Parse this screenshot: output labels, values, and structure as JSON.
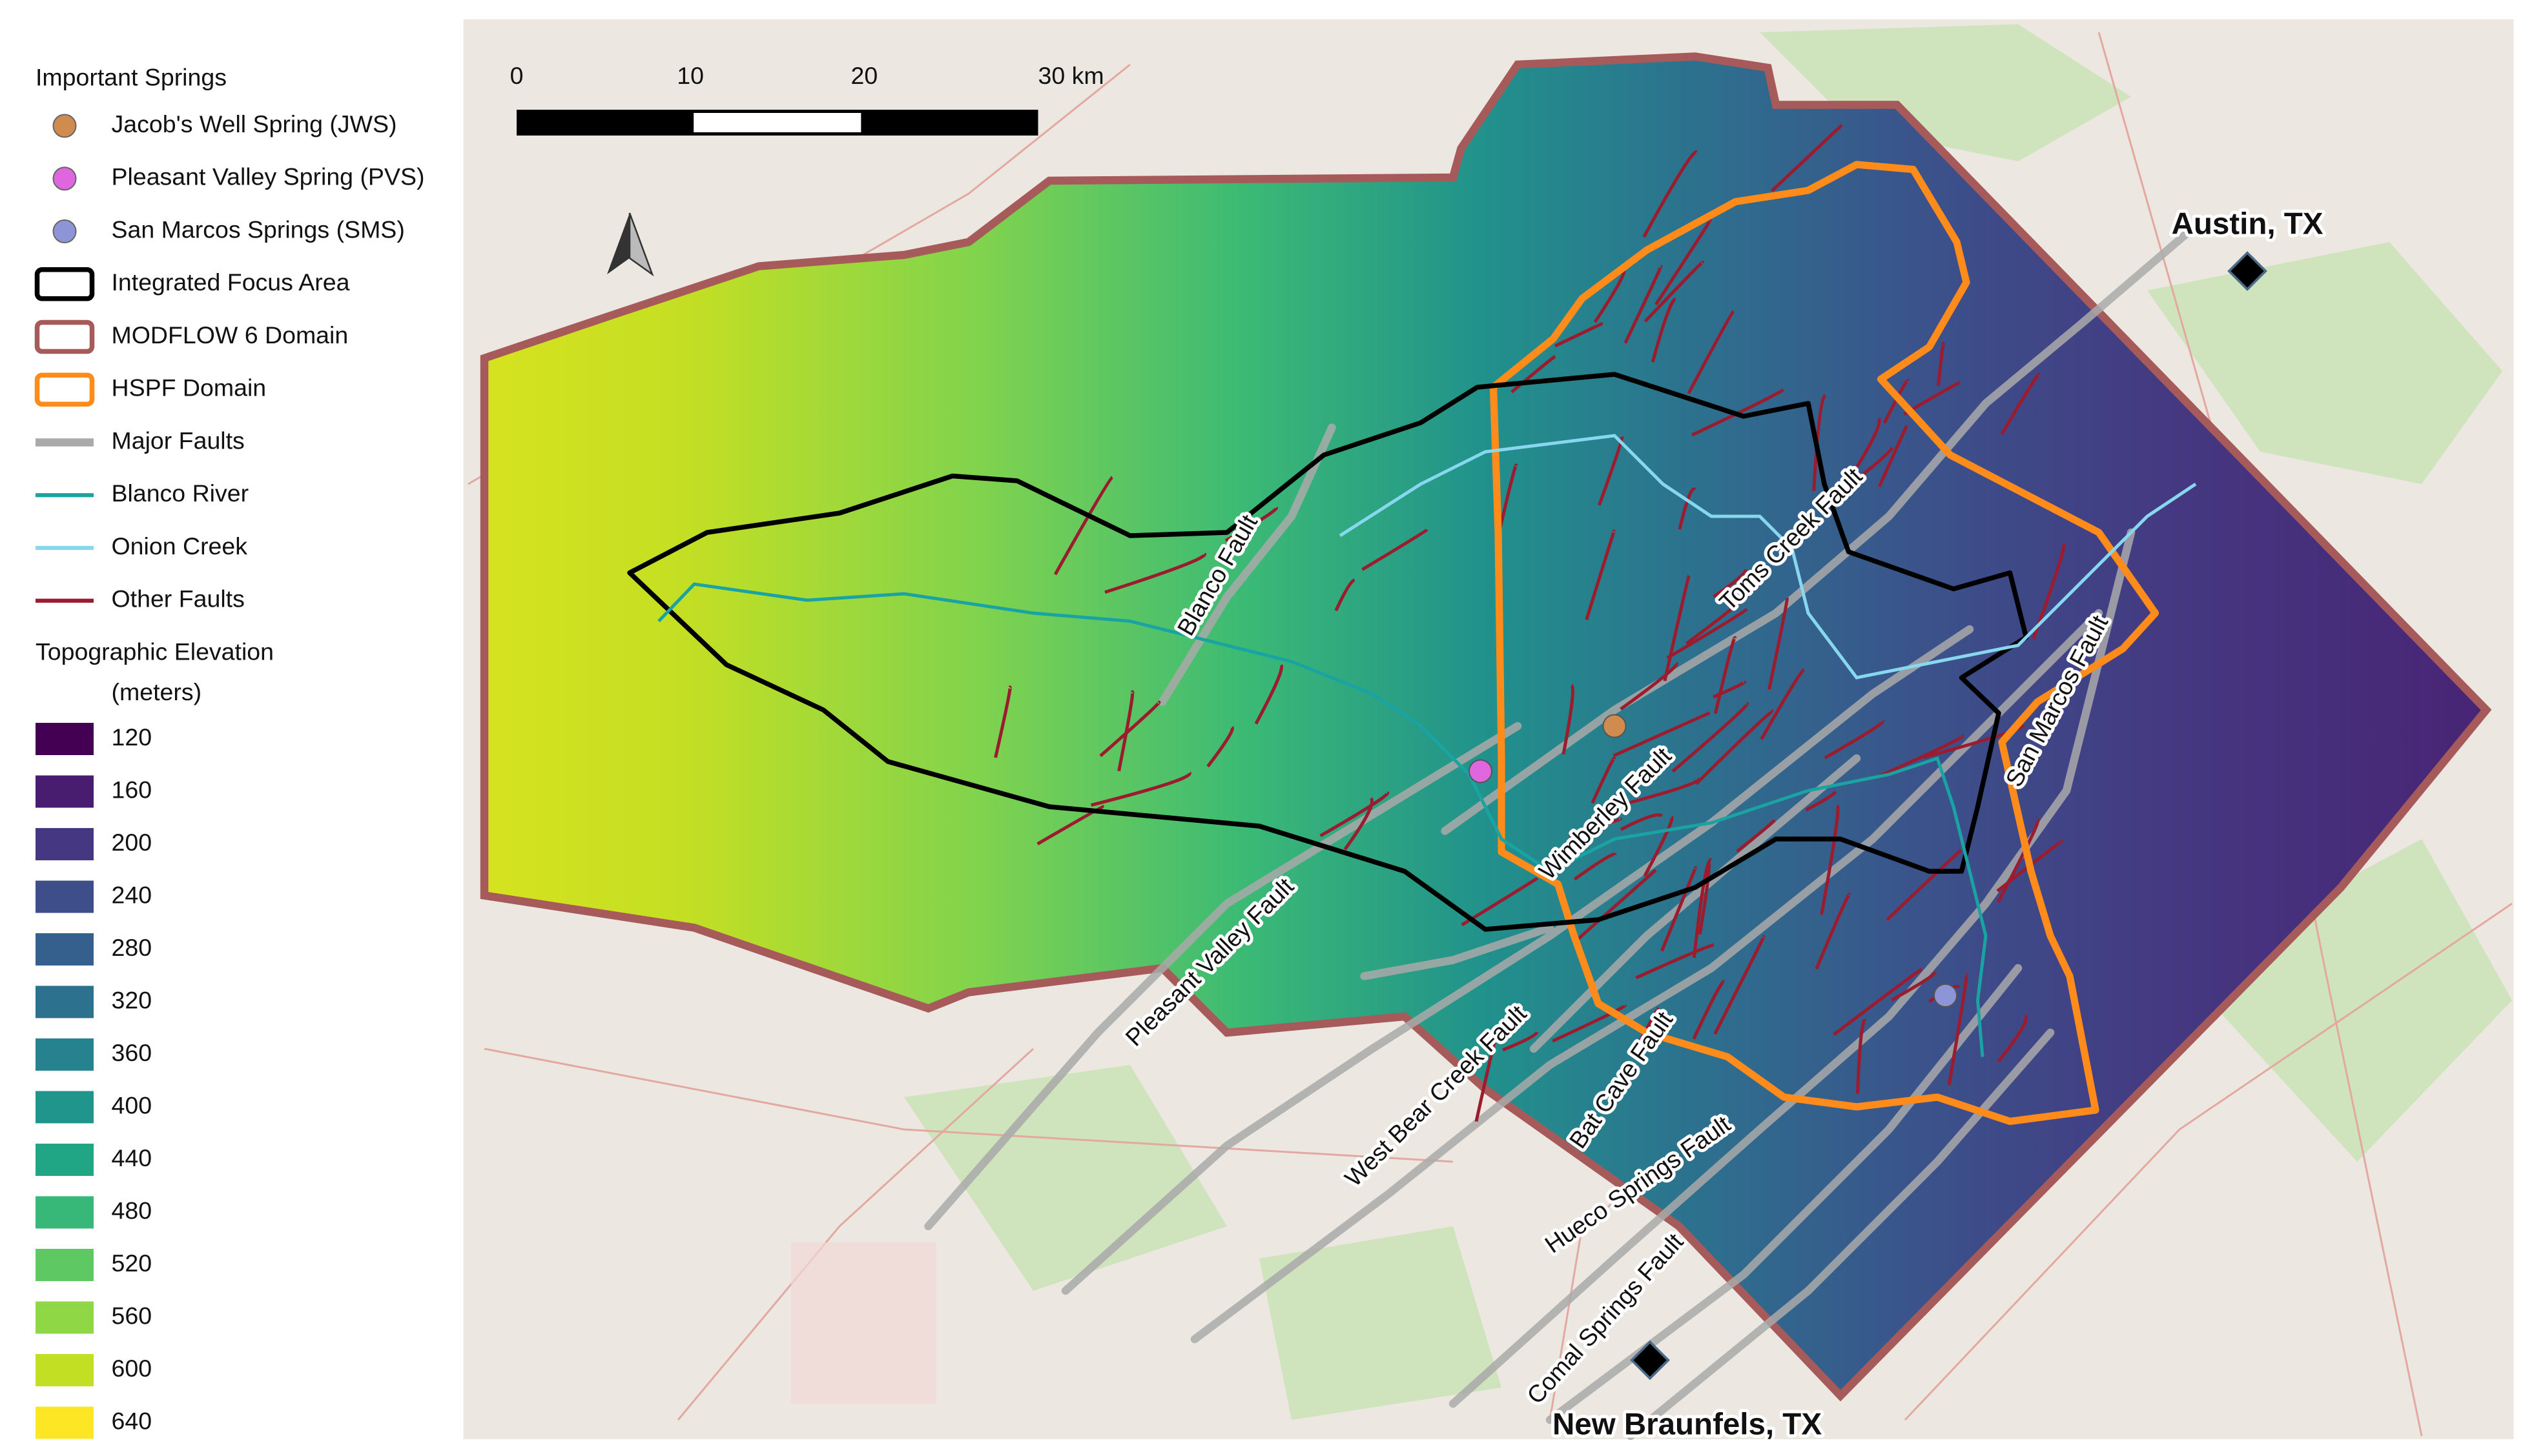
{
  "legend": {
    "springs_title": "Important Springs",
    "items": [
      {
        "label": "Jacob's Well Spring (JWS)",
        "symbol": "point",
        "color": "#d08b4e"
      },
      {
        "label": "Pleasant Valley Spring (PVS)",
        "symbol": "point",
        "color": "#e066e0"
      },
      {
        "label": "San Marcos Springs (SMS)",
        "symbol": "point",
        "color": "#8e95d6"
      },
      {
        "label": "Integrated Focus Area",
        "symbol": "box",
        "color": "#000000"
      },
      {
        "label": "MODFLOW 6 Domain",
        "symbol": "box",
        "color": "#a65a5a"
      },
      {
        "label": "HSPF Domain",
        "symbol": "box",
        "color": "#ff8c1a"
      },
      {
        "label": "Major Faults",
        "symbol": "line",
        "color": "#aaaaaa"
      },
      {
        "label": "Blanco River",
        "symbol": "line",
        "color": "#1aa3a3"
      },
      {
        "label": "Onion Creek",
        "symbol": "line",
        "color": "#87d7ee"
      },
      {
        "label": "Other Faults",
        "symbol": "line",
        "color": "#9b1c2e"
      }
    ],
    "elevation_title": "Topographic Elevation",
    "elevation_units": "(meters)",
    "elevation": [
      {
        "value": 120,
        "color": "#440154"
      },
      {
        "value": 160,
        "color": "#481c6e"
      },
      {
        "value": 200,
        "color": "#453781"
      },
      {
        "value": 240,
        "color": "#3d4e8a"
      },
      {
        "value": 280,
        "color": "#35608d"
      },
      {
        "value": 320,
        "color": "#2c728e"
      },
      {
        "value": 360,
        "color": "#26828e"
      },
      {
        "value": 400,
        "color": "#1f958b"
      },
      {
        "value": 440,
        "color": "#21a685"
      },
      {
        "value": 480,
        "color": "#37b878"
      },
      {
        "value": 520,
        "color": "#5ec962"
      },
      {
        "value": 560,
        "color": "#8fd744"
      },
      {
        "value": 600,
        "color": "#c2df23"
      },
      {
        "value": 640,
        "color": "#fde725"
      }
    ]
  },
  "scale_bar": {
    "ticks": [
      0,
      10,
      20,
      {
        "value": 30,
        "label": "30 km"
      }
    ]
  },
  "fault_labels": [
    "Blanco Fault",
    "Toms Creek Fault",
    "San Marcos Fault",
    "Wimberley Fault",
    "Pleasant Valley Fault",
    "West Bear Creek Fault",
    "Bat Cave Fault",
    "Hueco Springs Fault",
    "Comal Springs Fault"
  ],
  "cities": [
    "Austin, TX",
    "New Braunfels, TX"
  ]
}
